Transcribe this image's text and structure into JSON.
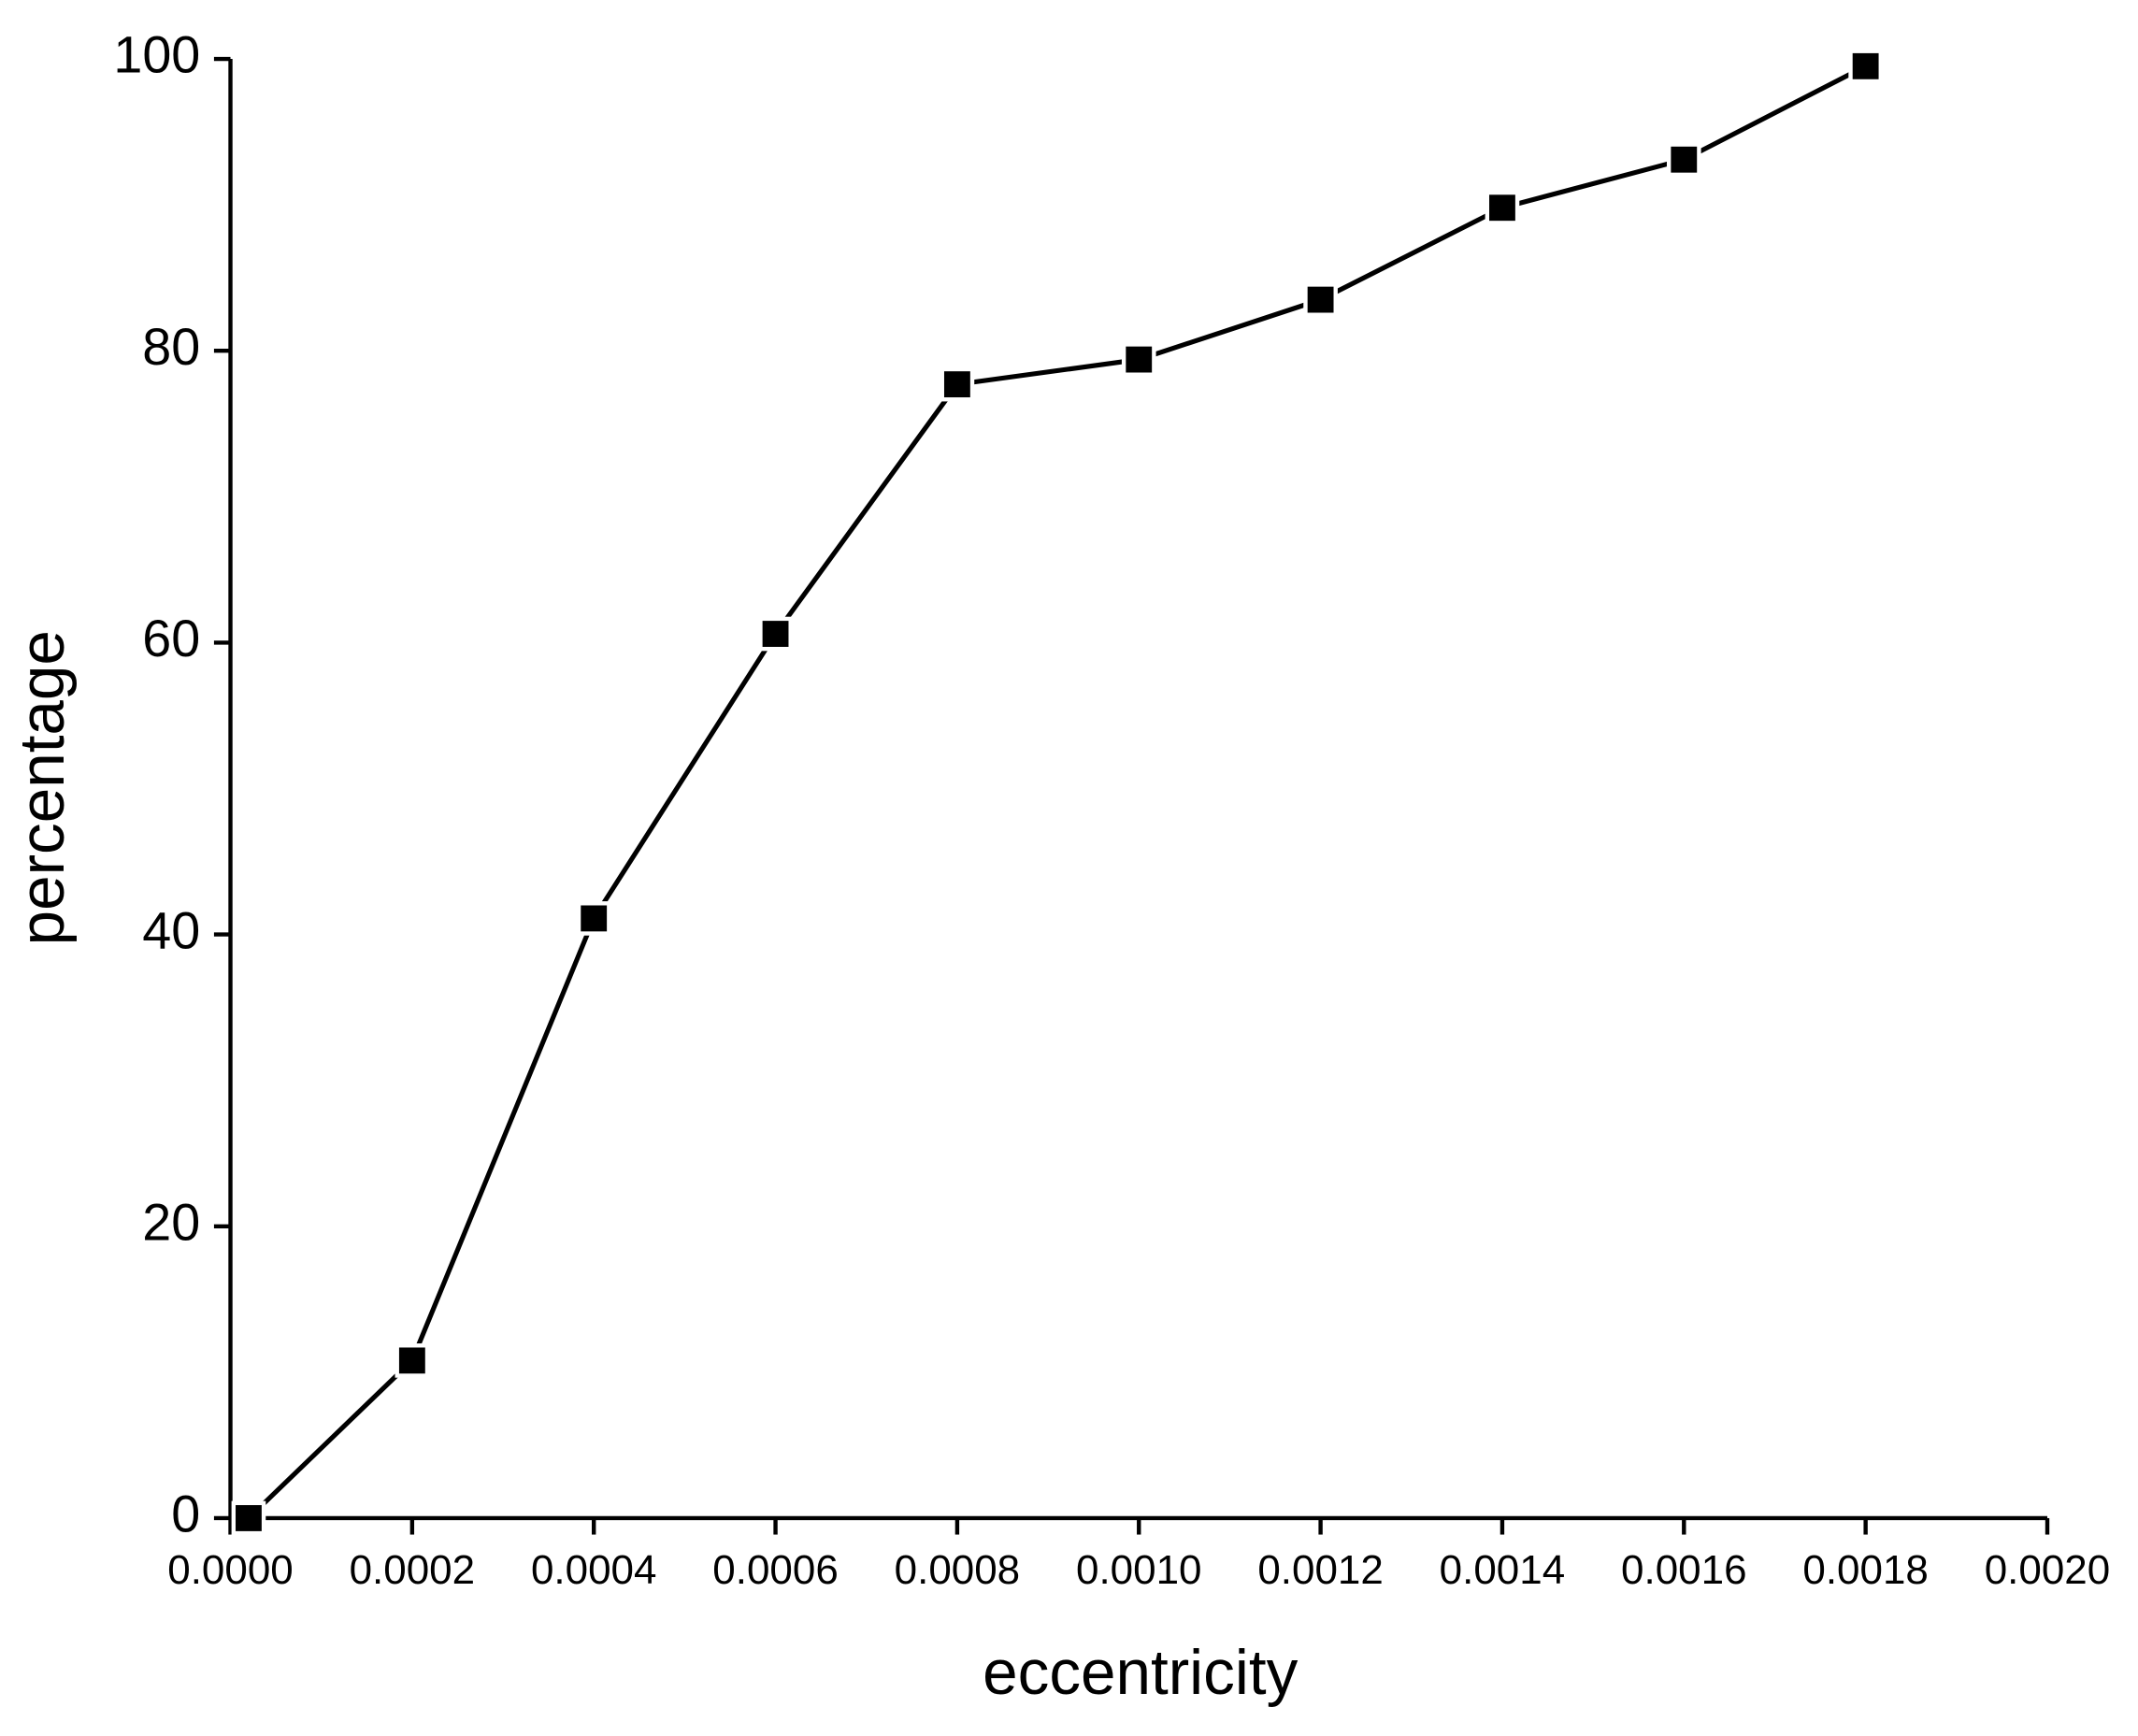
{
  "chart_data": {
    "type": "line",
    "x_label": "eccentricity",
    "y_label": "percentage",
    "x": [
      2e-05,
      0.0002,
      0.0004,
      0.0006,
      0.0008,
      0.001,
      0.0012,
      0.0014,
      0.0016,
      0.0018
    ],
    "series": [
      {
        "color": "#000000",
        "values": [
          0,
          10.8,
          41.1,
          60.6,
          77.7,
          79.4,
          83.5,
          89.8,
          93.1,
          99.5
        ]
      }
    ],
    "xlim": [
      0,
      0.002
    ],
    "xticks": [
      {
        "value": 0,
        "label": "0.0000"
      },
      {
        "value": 0.0002,
        "label": "0.0002"
      },
      {
        "value": 0.0004,
        "label": "0.0004"
      },
      {
        "value": 0.0006,
        "label": "0.0006"
      },
      {
        "value": 0.0008,
        "label": "0.0008"
      },
      {
        "value": 0.001,
        "label": "0.0010"
      },
      {
        "value": 0.0012,
        "label": "0.0012"
      },
      {
        "value": 0.0014,
        "label": "0.0014"
      },
      {
        "value": 0.0016,
        "label": "0.0016"
      },
      {
        "value": 0.0018,
        "label": "0.0018"
      },
      {
        "value": 0.002,
        "label": "0.0020"
      }
    ],
    "ylim": [
      0,
      100
    ],
    "yticks": [
      0,
      20,
      40,
      60,
      80,
      100
    ],
    "grid": false
  }
}
